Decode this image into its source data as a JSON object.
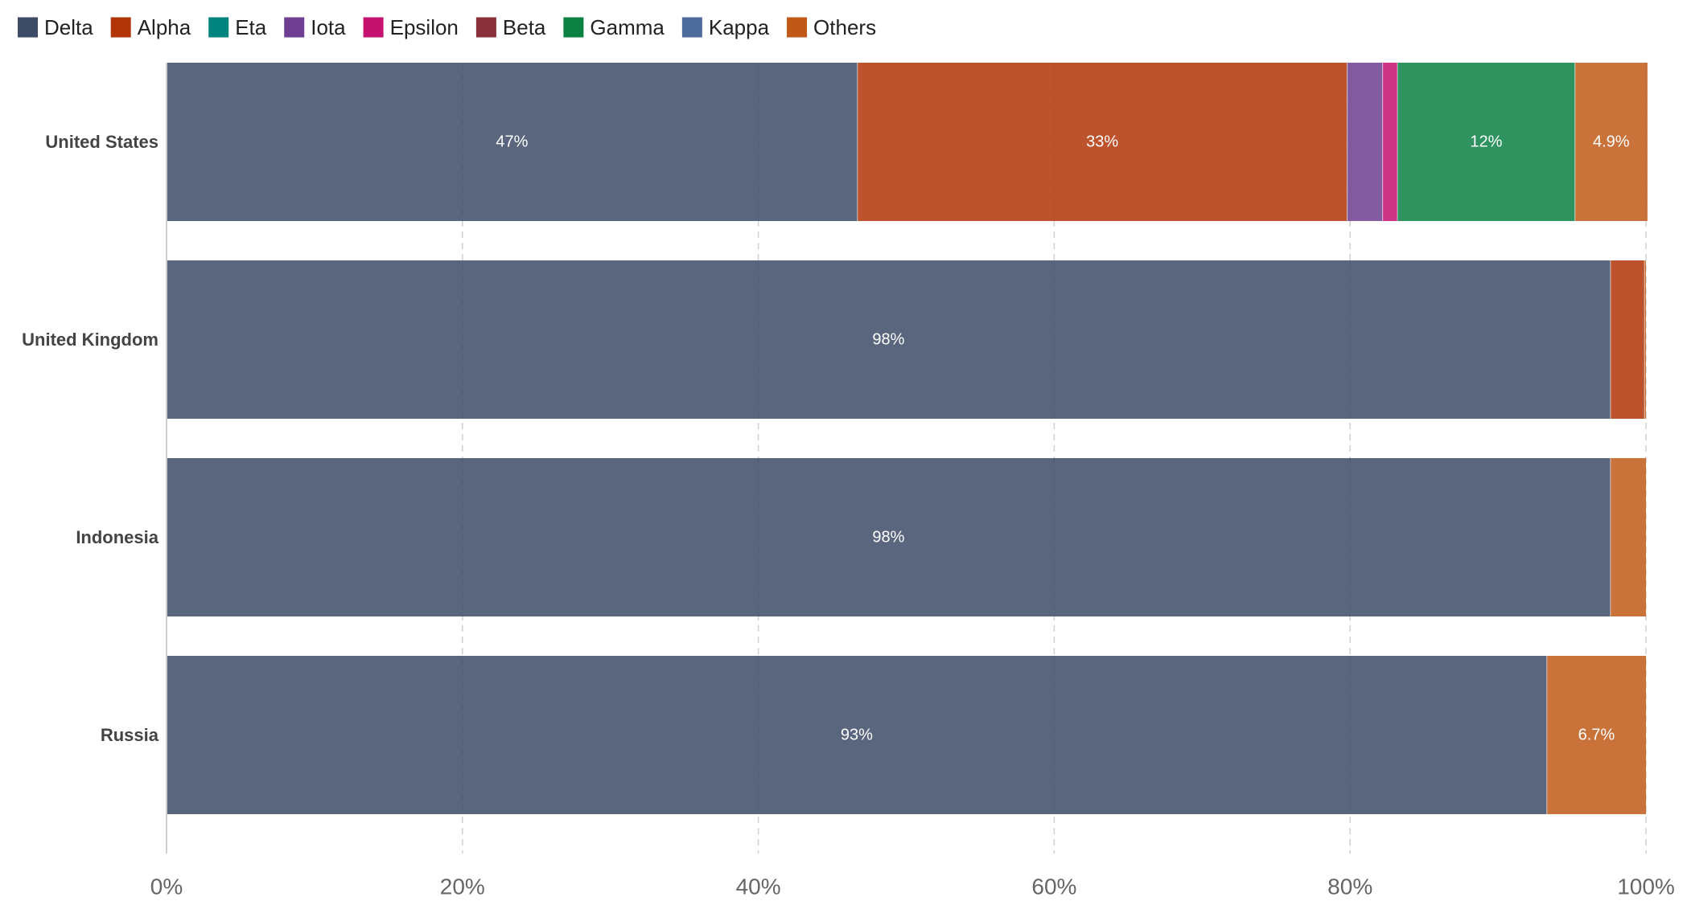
{
  "chart_data": {
    "type": "bar",
    "orientation": "horizontal",
    "stacked": true,
    "categories": [
      "United States",
      "United Kingdom",
      "Indonesia",
      "Russia"
    ],
    "series": [
      {
        "name": "Delta",
        "color": "#3d4b66",
        "values": [
          46.7,
          97.6,
          97.6,
          93.3
        ]
      },
      {
        "name": "Alpha",
        "color": "#b13507",
        "values": [
          33.1,
          2.3,
          0,
          0
        ]
      },
      {
        "name": "Eta",
        "color": "#00847e",
        "values": [
          0,
          0,
          0,
          0
        ]
      },
      {
        "name": "Iota",
        "color": "#6d3e91",
        "values": [
          2.4,
          0,
          0,
          0
        ]
      },
      {
        "name": "Epsilon",
        "color": "#c5126e",
        "values": [
          1.0,
          0,
          0,
          0
        ]
      },
      {
        "name": "Beta",
        "color": "#883039",
        "values": [
          0,
          0,
          0,
          0
        ]
      },
      {
        "name": "Gamma",
        "color": "#0b8043",
        "values": [
          12.0,
          0,
          0,
          0
        ]
      },
      {
        "name": "Kappa",
        "color": "#4c6a9c",
        "values": [
          0,
          0,
          0,
          0
        ]
      },
      {
        "name": "Others",
        "color": "#c05917",
        "values": [
          4.9,
          0.1,
          2.4,
          6.7
        ]
      }
    ],
    "data_labels": [
      {
        "category": "United States",
        "series": "Delta",
        "text": "47%"
      },
      {
        "category": "United States",
        "series": "Alpha",
        "text": "33%"
      },
      {
        "category": "United States",
        "series": "Gamma",
        "text": "12%"
      },
      {
        "category": "United States",
        "series": "Others",
        "text": "4.9%"
      },
      {
        "category": "United Kingdom",
        "series": "Delta",
        "text": "98%"
      },
      {
        "category": "Indonesia",
        "series": "Delta",
        "text": "98%"
      },
      {
        "category": "Russia",
        "series": "Delta",
        "text": "93%"
      },
      {
        "category": "Russia",
        "series": "Others",
        "text": "6.7%"
      }
    ],
    "x_ticks": [
      {
        "value": 0,
        "label": "0%"
      },
      {
        "value": 20,
        "label": "20%"
      },
      {
        "value": 40,
        "label": "40%"
      },
      {
        "value": 60,
        "label": "60%"
      },
      {
        "value": 80,
        "label": "80%"
      },
      {
        "value": 100,
        "label": "100%"
      }
    ],
    "xlim": [
      0,
      100
    ],
    "grid": "vertical dashed",
    "legend_position": "top-left",
    "title": "",
    "xlabel": "",
    "ylabel": ""
  }
}
